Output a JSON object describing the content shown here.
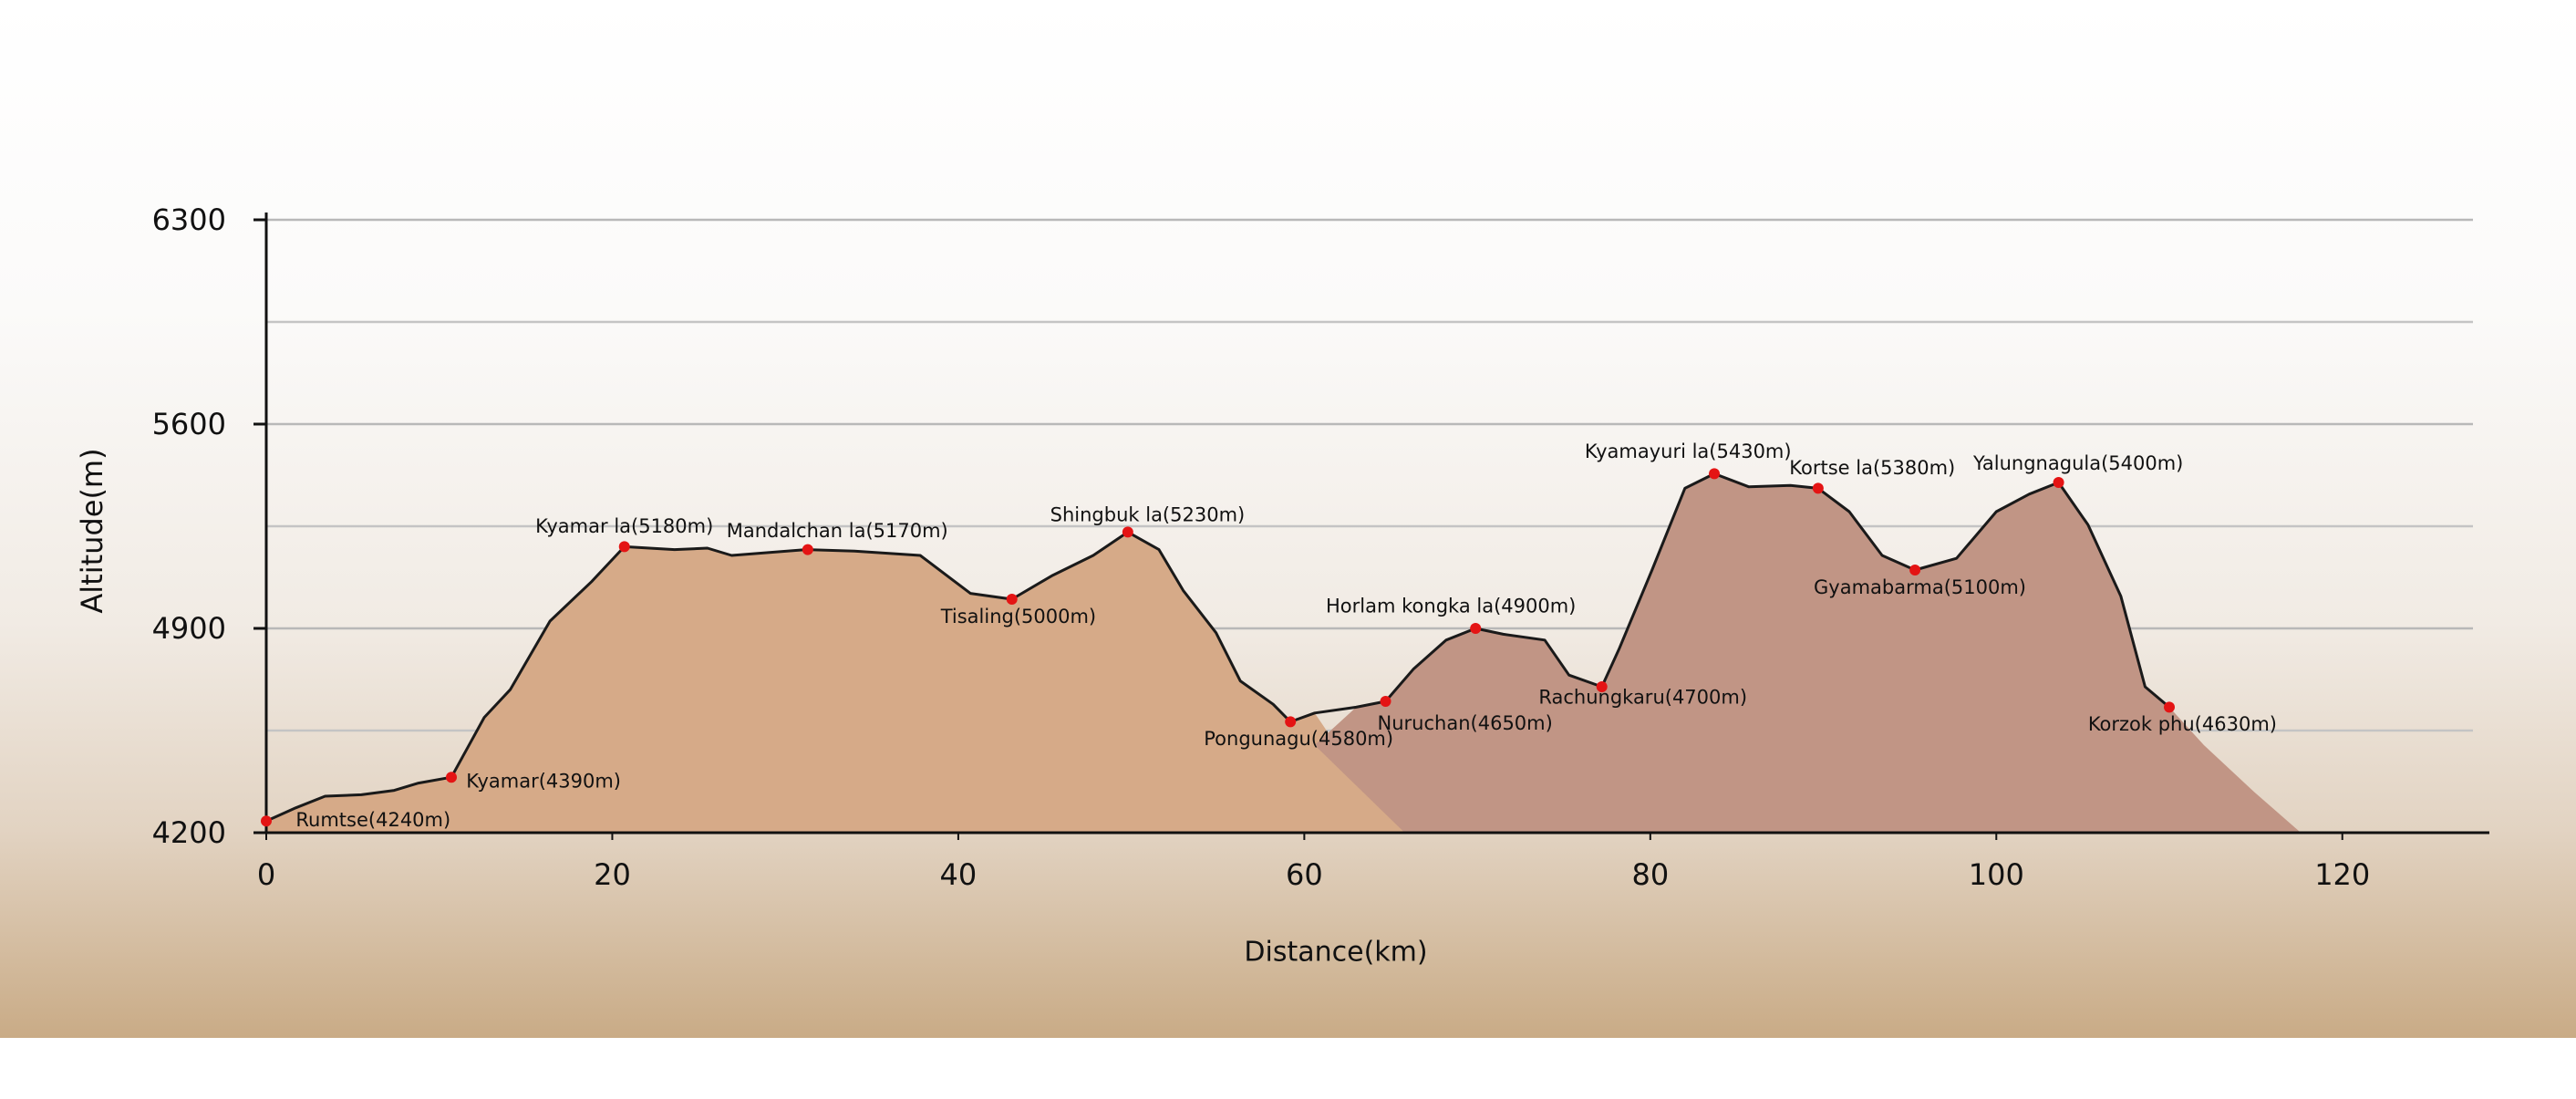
{
  "chart_data": {
    "type": "line",
    "x_label": "Distance(km)",
    "y_label": "Altitude(m)",
    "xlim": [
      0,
      128.5
    ],
    "ylim": [
      4200,
      6300
    ],
    "xticks": [
      0,
      20,
      40,
      60,
      80,
      100,
      120
    ],
    "yticks": [
      4200,
      4900,
      5600,
      6300
    ],
    "minor_yticks": [
      4550,
      5250,
      5950
    ],
    "grid": true,
    "profile": {
      "color": "#1a1a1a",
      "x": [
        0,
        1.7,
        3.4,
        5.5,
        7.4,
        8.8,
        10.7,
        12.6,
        14.1,
        16.4,
        18.8,
        20.7,
        23.6,
        25.5,
        26.9,
        31.2,
        34.0,
        37.8,
        40.7,
        43.1,
        45.4,
        47.8,
        49.8,
        51.6,
        53.0,
        54.9,
        56.3,
        58.2,
        59.2,
        60.6,
        63.0,
        64.7,
        66.3,
        68.2,
        69.9,
        71.5,
        73.9,
        75.3,
        77.2,
        78.2,
        80.1,
        82.0,
        83.7,
        85.7,
        88.1,
        89.7,
        91.5,
        93.4,
        95.3,
        97.7,
        100.0,
        101.9,
        103.6,
        105.3,
        107.2,
        108.6,
        110.0
      ],
      "values": [
        4240,
        4285,
        4325,
        4330,
        4345,
        4370,
        4390,
        4595,
        4690,
        4925,
        5060,
        5180,
        5170,
        5175,
        5150,
        5170,
        5165,
        5150,
        5020,
        5000,
        5080,
        5150,
        5230,
        5170,
        5030,
        4885,
        4720,
        4640,
        4580,
        4610,
        4630,
        4650,
        4760,
        4860,
        4900,
        4880,
        4860,
        4740,
        4700,
        4830,
        5100,
        5380,
        5430,
        5385,
        5390,
        5380,
        5300,
        5150,
        5100,
        5140,
        5300,
        5360,
        5400,
        5255,
        5010,
        4700,
        4630
      ]
    },
    "fills": [
      {
        "color": "#d6aa88",
        "x": [
          0,
          1.7,
          3.4,
          5.5,
          7.4,
          8.8,
          10.7,
          12.6,
          14.1,
          16.4,
          18.8,
          20.7,
          23.6,
          25.5,
          26.9,
          31.2,
          34.0,
          37.8,
          40.7,
          43.1,
          45.4,
          47.8,
          49.8,
          51.6,
          53.0,
          54.9,
          56.3,
          58.2,
          59.2,
          60.6,
          63.0,
          66.0
        ],
        "values": [
          4240,
          4285,
          4325,
          4330,
          4345,
          4370,
          4390,
          4595,
          4690,
          4925,
          5060,
          5180,
          5170,
          5175,
          5150,
          5170,
          5165,
          5150,
          5020,
          5000,
          5080,
          5150,
          5230,
          5170,
          5030,
          4885,
          4720,
          4640,
          4580,
          4610,
          4400,
          4200
        ]
      },
      {
        "color": "#c19585",
        "x": [
          65.8,
          60.6,
          63.0,
          64.7,
          66.3,
          68.2,
          69.9,
          71.5,
          73.9,
          75.3,
          77.2,
          78.2,
          80.1,
          82.0,
          83.7,
          85.7,
          88.1,
          89.7,
          91.5,
          93.4,
          95.3,
          97.7,
          100.0,
          101.9,
          103.6,
          105.3,
          107.2,
          108.6,
          110.0,
          112.0,
          114.9,
          117.6
        ],
        "values": [
          4200,
          4500,
          4630,
          4650,
          4760,
          4860,
          4900,
          4880,
          4860,
          4740,
          4700,
          4830,
          5100,
          5380,
          5430,
          5385,
          5390,
          5380,
          5300,
          5150,
          5100,
          5140,
          5300,
          5360,
          5400,
          5255,
          5010,
          4700,
          4630,
          4500,
          4340,
          4200
        ]
      }
    ],
    "waypoints": {
      "color": "#e41414",
      "x": [
        0,
        10.7,
        20.7,
        31.3,
        43.1,
        49.8,
        59.2,
        64.7,
        69.9,
        77.2,
        83.7,
        89.7,
        95.3,
        103.6,
        110.0
      ],
      "values": [
        4240,
        4390,
        5180,
        5170,
        5000,
        5230,
        4580,
        4650,
        4900,
        4700,
        5430,
        5380,
        5100,
        5400,
        4630
      ],
      "value_labels": [
        "Rumtse(4240m)",
        "Kyamar(4390m)",
        "Kyamar la(5180m)",
        "Mandalchan la(5170m)",
        "Tisaling(5000m)",
        "Shingbuk la(5230m)",
        "Pongunagu(4580m)",
        "Nuruchan(4650m)",
        "Horlam kongka la(4900m)",
        "Rachungkaru(4700m)",
        "Kyamayuri la(5430m)",
        "Kortse la(5380m)",
        "Gyamabarma(5100m)",
        "Yalungnagula(5400m)",
        "Korzok phu(4630m)"
      ]
    }
  }
}
